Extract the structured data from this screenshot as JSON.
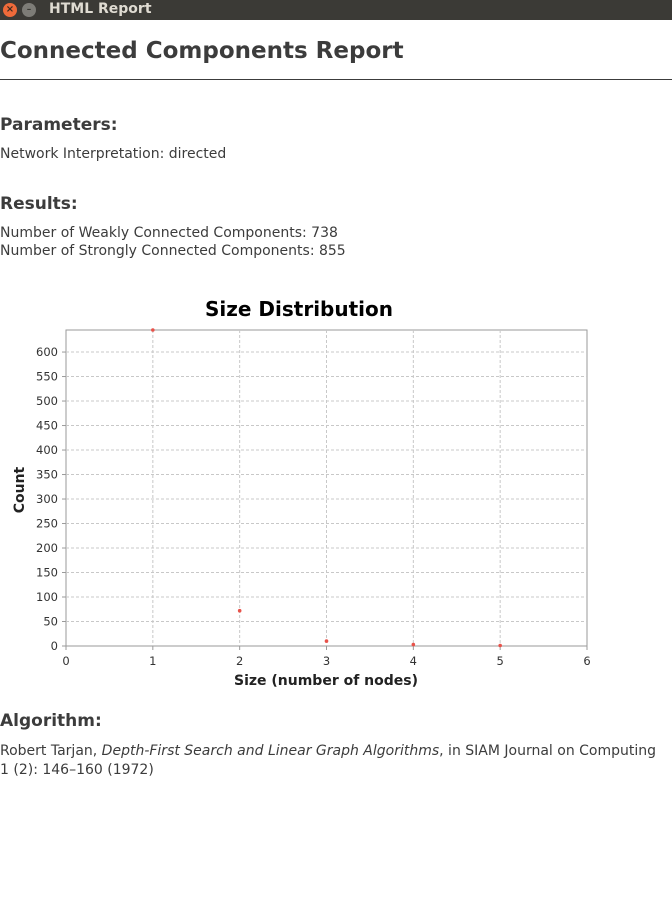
{
  "window": {
    "title": "HTML Report",
    "close_glyph": "×",
    "minimize_glyph": "–"
  },
  "report": {
    "title": "Connected Components Report"
  },
  "parameters": {
    "heading": "Parameters:",
    "network_interpretation": "Network Interpretation: directed"
  },
  "results": {
    "heading": "Results:",
    "weakly": "Number of Weakly Connected Components: 738",
    "strongly": "Number of Strongly Connected Components: 855"
  },
  "algorithm": {
    "heading": "Algorithm:",
    "author": "Robert Tarjan, ",
    "paper_title": "Depth-First Search and Linear Graph Algorithms",
    "citation": ", in SIAM Journal on Computing 1 (2): 146–160 (1972)"
  },
  "colors": {
    "point": "#e8524a",
    "grid": "#c8c8c8",
    "axis": "#9a9a9a"
  },
  "chart_data": {
    "type": "scatter",
    "title": "Size Distribution",
    "xlabel": "Size (number of nodes)",
    "ylabel": "Count",
    "xlim": [
      0,
      6
    ],
    "ylim": [
      0,
      645
    ],
    "xticks": [
      0,
      1,
      2,
      3,
      4,
      5,
      6
    ],
    "yticks": [
      0,
      50,
      100,
      150,
      200,
      250,
      300,
      350,
      400,
      450,
      500,
      550,
      600
    ],
    "grid": true,
    "points": [
      {
        "x": 1,
        "y": 645
      },
      {
        "x": 2,
        "y": 72
      },
      {
        "x": 3,
        "y": 10
      },
      {
        "x": 4,
        "y": 3
      },
      {
        "x": 5,
        "y": 1
      }
    ]
  }
}
